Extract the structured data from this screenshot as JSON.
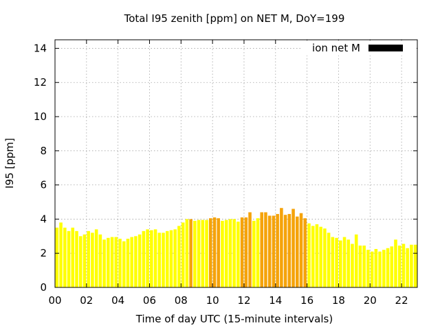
{
  "chart_data": {
    "type": "bar",
    "title": "Total I95 zenith [ppm] on NET M, DoY=199",
    "xlabel": "Time of day UTC (15-minute intervals)",
    "ylabel": "I95 [ppm]",
    "xlim": [
      0,
      23
    ],
    "ylim": [
      0,
      14.5
    ],
    "xticks": [
      0,
      2,
      4,
      6,
      8,
      10,
      12,
      14,
      16,
      18,
      20,
      22
    ],
    "xtick_labels": [
      "00",
      "02",
      "04",
      "06",
      "08",
      "10",
      "12",
      "14",
      "16",
      "18",
      "20",
      "22"
    ],
    "yticks": [
      0,
      2,
      4,
      6,
      8,
      10,
      12,
      14
    ],
    "ytick_labels": [
      "0",
      "2",
      "4",
      "6",
      "8",
      "10",
      "12",
      "14"
    ],
    "grid": true,
    "legend": {
      "label": "ion net M",
      "color": "#000000",
      "placement": "top-right"
    },
    "bar_colors": {
      "low": "#ffff00",
      "high": "#f5a30a"
    },
    "bar_width": 0.2,
    "series": [
      {
        "values": [
          3.5,
          3.8,
          3.5,
          3.3,
          3.5,
          3.3,
          3.0,
          3.1,
          3.3,
          3.2,
          3.4,
          3.1,
          2.8,
          2.9,
          2.95,
          2.95,
          2.85,
          2.7,
          2.85,
          2.95,
          3.0,
          3.1,
          3.3,
          3.4,
          3.35,
          3.4,
          3.2,
          3.2,
          3.3,
          3.35,
          3.4,
          3.6,
          3.8,
          4.0,
          4.0,
          3.9,
          3.95,
          3.95,
          3.95,
          4.05,
          4.1,
          4.05,
          3.9,
          3.95,
          4.0,
          4.0,
          3.85,
          4.1,
          4.1,
          4.4,
          3.9,
          4.05,
          4.4,
          4.4,
          4.2,
          4.2,
          4.3,
          4.65,
          4.25,
          4.3,
          4.6,
          4.15,
          4.35,
          4.05,
          3.75,
          3.6,
          3.7,
          3.55,
          3.45,
          3.2,
          2.95,
          2.9,
          2.75,
          2.95,
          2.8,
          2.55,
          3.1,
          2.45,
          2.45,
          2.2,
          2.1,
          2.25,
          2.1,
          2.2,
          2.3,
          2.4,
          2.8,
          2.45,
          2.55,
          2.3,
          2.5,
          2.5
        ],
        "colors": [
          "low",
          "low",
          "low",
          "low",
          "low",
          "low",
          "low",
          "low",
          "low",
          "low",
          "low",
          "low",
          "low",
          "low",
          "low",
          "low",
          "low",
          "low",
          "low",
          "low",
          "low",
          "low",
          "low",
          "low",
          "low",
          "low",
          "low",
          "low",
          "low",
          "low",
          "low",
          "low",
          "low",
          "low",
          "high",
          "low",
          "low",
          "low",
          "low",
          "high",
          "high",
          "high",
          "low",
          "low",
          "low",
          "low",
          "low",
          "high",
          "high",
          "high",
          "low",
          "low",
          "high",
          "high",
          "high",
          "high",
          "high",
          "high",
          "high",
          "high",
          "high",
          "high",
          "high",
          "high",
          "low",
          "low",
          "low",
          "low",
          "low",
          "low",
          "low",
          "low",
          "low",
          "low",
          "low",
          "low",
          "low",
          "low",
          "low",
          "low",
          "low",
          "low",
          "low",
          "low",
          "low",
          "low",
          "low",
          "low",
          "low",
          "low",
          "low",
          "low"
        ]
      }
    ]
  }
}
